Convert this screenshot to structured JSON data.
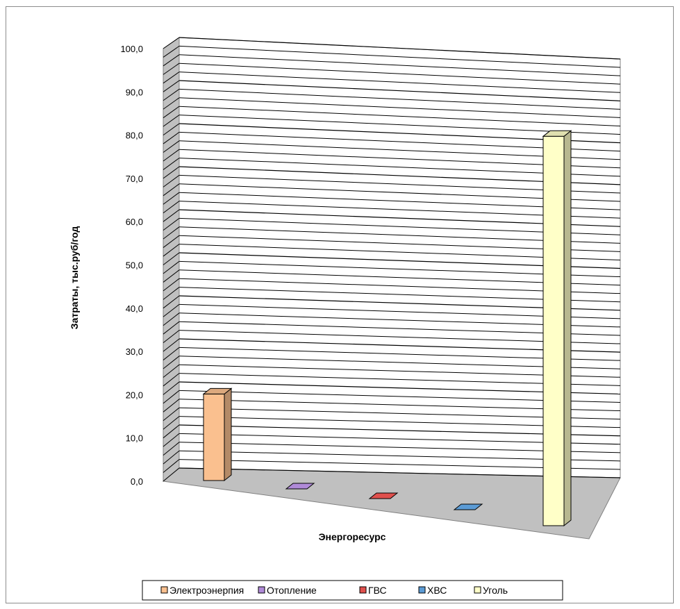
{
  "chart_data": {
    "type": "bar",
    "style": "3d-column",
    "categories": [
      "Электроэнерпия",
      "Отопление",
      "ГВС",
      "ХВС",
      "Уголь"
    ],
    "values": [
      20.0,
      0.0,
      0.0,
      0.0,
      90.0
    ],
    "colors": [
      "#fac08f",
      "#b08ad8",
      "#e0504d",
      "#5b9bd5",
      "#ffffc8"
    ],
    "title": "",
    "xlabel": "Энергоресурс",
    "ylabel": "Затраты, тыс.руб/год",
    "ylim": [
      0,
      100
    ],
    "major_step": 10,
    "minor_step": 2,
    "y_ticks": [
      "0,0",
      "10,0",
      "20,0",
      "30,0",
      "40,0",
      "50,0",
      "60,0",
      "70,0",
      "80,0",
      "90,0",
      "100,0"
    ],
    "grid": true,
    "legend": {
      "position": "bottom",
      "entries": [
        "Электроэнерпия",
        "Отопление",
        "ГВС",
        "ХВС",
        "Уголь"
      ]
    }
  }
}
